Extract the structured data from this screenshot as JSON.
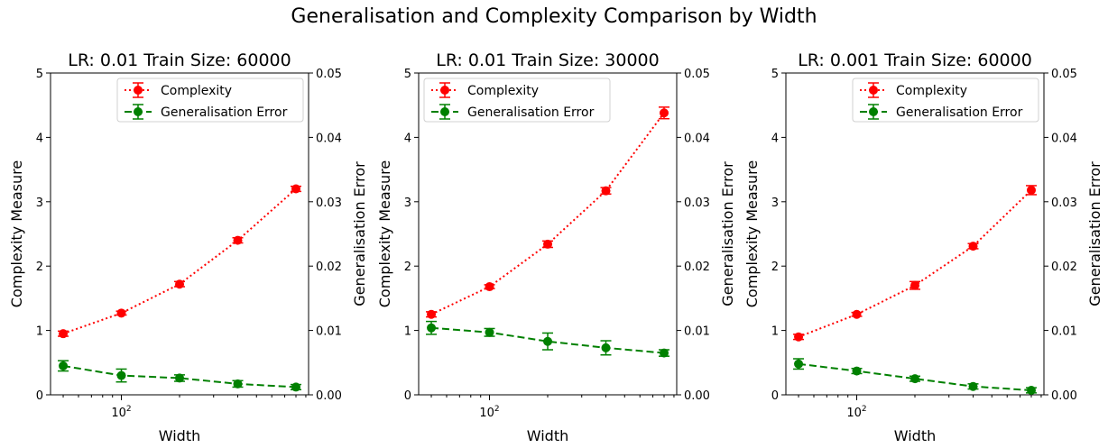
{
  "suptitle": "Generalisation and Complexity Comparison by Width",
  "chart_data": [
    {
      "type": "line",
      "title": "LR: 0.01  Train Size: 60000",
      "xlabel": "Width",
      "x_tick_label": "10",
      "x_tick_exp": "2",
      "x_scale": "log",
      "x": [
        50,
        100,
        200,
        400,
        800
      ],
      "ylabel_left": "Complexity Measure",
      "ylabel_right": "Generalisation Error",
      "ylim_left": [
        0,
        5
      ],
      "ylim_right": [
        0,
        0.05
      ],
      "yticks_left": [
        "0",
        "1",
        "2",
        "3",
        "4",
        "5"
      ],
      "yticks_right": [
        "0.00",
        "0.01",
        "0.02",
        "0.03",
        "0.04",
        "0.05"
      ],
      "legend_position": "upper right",
      "series": [
        {
          "name": "Complexity",
          "axis": "left",
          "color": "#ff0000",
          "style": "dotted",
          "values": [
            0.95,
            1.27,
            1.72,
            2.4,
            3.2
          ],
          "errors": [
            0.04,
            0.03,
            0.04,
            0.04,
            0.04
          ]
        },
        {
          "name": "Generalisation Error",
          "axis": "right",
          "color": "#008000",
          "style": "dashed",
          "values": [
            0.0045,
            0.003,
            0.0026,
            0.0017,
            0.0012
          ],
          "errors": [
            0.0008,
            0.001,
            0.0005,
            0.0005,
            0.0004
          ]
        }
      ]
    },
    {
      "type": "line",
      "title": "LR: 0.01  Train Size: 30000",
      "xlabel": "Width",
      "x_tick_label": "10",
      "x_tick_exp": "2",
      "x_scale": "log",
      "x": [
        50,
        100,
        200,
        400,
        800
      ],
      "ylabel_left": "Complexity Measure",
      "ylabel_right": "Generalisation Error",
      "ylim_left": [
        0,
        5
      ],
      "ylim_right": [
        0,
        0.05
      ],
      "yticks_left": [
        "0",
        "1",
        "2",
        "3",
        "4",
        "5"
      ],
      "yticks_right": [
        "0.00",
        "0.01",
        "0.02",
        "0.03",
        "0.04",
        "0.05"
      ],
      "legend_position": "upper left",
      "series": [
        {
          "name": "Complexity",
          "axis": "left",
          "color": "#ff0000",
          "style": "dotted",
          "values": [
            1.25,
            1.68,
            2.34,
            3.17,
            4.38
          ],
          "errors": [
            0.04,
            0.03,
            0.05,
            0.05,
            0.09
          ]
        },
        {
          "name": "Generalisation Error",
          "axis": "right",
          "color": "#008000",
          "style": "dashed",
          "values": [
            0.0104,
            0.0097,
            0.0083,
            0.0073,
            0.0065
          ],
          "errors": [
            0.001,
            0.0006,
            0.0013,
            0.0011,
            0.0005
          ]
        }
      ]
    },
    {
      "type": "line",
      "title": "LR: 0.001  Train Size: 60000",
      "xlabel": "Width",
      "x_tick_label": "10",
      "x_tick_exp": "2",
      "x_scale": "log",
      "x": [
        50,
        100,
        200,
        400,
        800
      ],
      "ylabel_left": "Complexity Measure",
      "ylabel_right": "Generalisation Error",
      "ylim_left": [
        0,
        5
      ],
      "ylim_right": [
        0,
        0.05
      ],
      "yticks_left": [
        "0",
        "1",
        "2",
        "3",
        "4",
        "5"
      ],
      "yticks_right": [
        "0.00",
        "0.01",
        "0.02",
        "0.03",
        "0.04",
        "0.05"
      ],
      "legend_position": "upper right",
      "series": [
        {
          "name": "Complexity",
          "axis": "left",
          "color": "#ff0000",
          "style": "dotted",
          "values": [
            0.9,
            1.25,
            1.7,
            2.31,
            3.18
          ],
          "errors": [
            0.04,
            0.03,
            0.06,
            0.04,
            0.07
          ]
        },
        {
          "name": "Generalisation Error",
          "axis": "right",
          "color": "#008000",
          "style": "dashed",
          "values": [
            0.0048,
            0.0037,
            0.0025,
            0.0013,
            0.0007
          ],
          "errors": [
            0.0008,
            0.0004,
            0.0004,
            0.0004,
            0.0004
          ]
        }
      ]
    }
  ]
}
